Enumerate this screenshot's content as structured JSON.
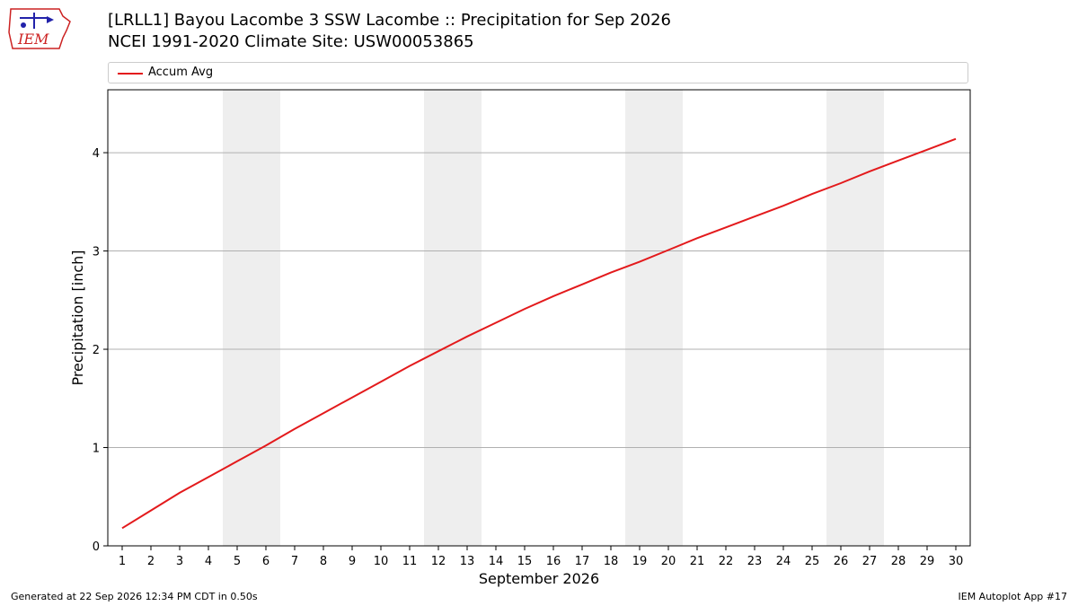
{
  "header": {
    "title_line1": "[LRLL1] Bayou Lacombe 3 SSW Lacombe :: Precipitation for Sep 2026",
    "title_line2": "NCEI 1991-2020 Climate Site: USW00053865",
    "logo_text": "IEM"
  },
  "legend": {
    "label": "Accum Avg"
  },
  "footer": {
    "left": "Generated at 22 Sep 2026 12:34 PM CDT in 0.50s",
    "right": "IEM Autoplot App #17"
  },
  "colors": {
    "line": "#e31a1c",
    "weekend_band": "#eeeeee",
    "grid": "#b0b0b0",
    "logo": "#cc2222"
  },
  "chart_data": {
    "type": "line",
    "xlabel": "September 2026",
    "ylabel": "Precipitation [inch]",
    "xlim": [
      0.5,
      30.5
    ],
    "ylim": [
      0,
      4.64
    ],
    "xticks": [
      1,
      2,
      3,
      4,
      5,
      6,
      7,
      8,
      9,
      10,
      11,
      12,
      13,
      14,
      15,
      16,
      17,
      18,
      19,
      20,
      21,
      22,
      23,
      24,
      25,
      26,
      27,
      28,
      29,
      30
    ],
    "yticks": [
      0,
      1,
      2,
      3,
      4
    ],
    "grid": "y-major",
    "legend_position": "top",
    "weekend_bands": [
      [
        5,
        6
      ],
      [
        12,
        13
      ],
      [
        19,
        20
      ],
      [
        26,
        27
      ]
    ],
    "series": [
      {
        "name": "Accum Avg",
        "x": [
          1,
          2,
          3,
          4,
          5,
          6,
          7,
          8,
          9,
          10,
          11,
          12,
          13,
          14,
          15,
          16,
          17,
          18,
          19,
          20,
          21,
          22,
          23,
          24,
          25,
          26,
          27,
          28,
          29,
          30
        ],
        "values": [
          0.18,
          0.36,
          0.54,
          0.7,
          0.86,
          1.02,
          1.19,
          1.35,
          1.51,
          1.67,
          1.83,
          1.98,
          2.13,
          2.27,
          2.41,
          2.54,
          2.66,
          2.78,
          2.89,
          3.01,
          3.13,
          3.24,
          3.35,
          3.46,
          3.58,
          3.69,
          3.81,
          3.92,
          4.03,
          4.14
        ]
      }
    ]
  }
}
